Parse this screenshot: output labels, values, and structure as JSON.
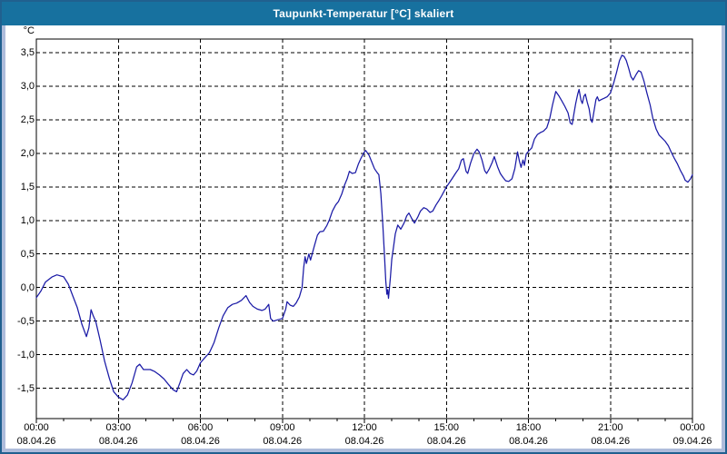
{
  "window": {
    "title": "Taupunkt-Temperatur [°C] skaliert"
  },
  "colors": {
    "titlebar_bg": "#17719f",
    "titlebar_text": "#ffffff",
    "frame": "#aebcdb",
    "frame_border": "#20608f",
    "plot_bg": "#ffffff",
    "grid": "#000000",
    "axis_text": "#000000",
    "line": "#1a1aa6"
  },
  "chart_data": {
    "type": "line",
    "title": "Taupunkt-Temperatur [°C] skaliert",
    "unit_label": "°C",
    "xlabel": "",
    "ylabel": "Taupunkt-Temperatur",
    "grid": "dashed",
    "legend": "none",
    "xlim_hours": [
      0,
      24
    ],
    "ylim": [
      -1.95,
      3.7
    ],
    "minor_x_tick_every_hours": 1,
    "major_x_tick_every_hours": 3,
    "y_ticks": [
      {
        "label": "3,5",
        "v": 3.5
      },
      {
        "label": "3,0",
        "v": 3.0
      },
      {
        "label": "2,5",
        "v": 2.5
      },
      {
        "label": "2,0",
        "v": 2.0
      },
      {
        "label": "1,5",
        "v": 1.5
      },
      {
        "label": "1,0",
        "v": 1.0
      },
      {
        "label": "0,5",
        "v": 0.5
      },
      {
        "label": "0,0",
        "v": 0.0
      },
      {
        "label": "-0,5",
        "v": -0.5
      },
      {
        "label": "-1,0",
        "v": -1.0
      },
      {
        "label": "-1,5",
        "v": -1.5
      }
    ],
    "x_ticks": [
      {
        "time": "00:00",
        "date": "08.04.26",
        "h": 0
      },
      {
        "time": "03:00",
        "date": "08.04.26",
        "h": 3
      },
      {
        "time": "06:00",
        "date": "08.04.26",
        "h": 6
      },
      {
        "time": "09:00",
        "date": "08.04.26",
        "h": 9
      },
      {
        "time": "12:00",
        "date": "08.04.26",
        "h": 12
      },
      {
        "time": "15:00",
        "date": "08.04.26",
        "h": 15
      },
      {
        "time": "18:00",
        "date": "08.04.26",
        "h": 18
      },
      {
        "time": "21:00",
        "date": "08.04.26",
        "h": 21
      },
      {
        "time": "00:00",
        "date": "09.04.26",
        "h": 24
      }
    ],
    "series": [
      {
        "name": "Taupunkt-Temperatur",
        "color": "#1a1aa6",
        "points_h_degC": [
          [
            0,
            -0.15
          ],
          [
            0.17,
            -0.05
          ],
          [
            0.33,
            0.08
          ],
          [
            0.58,
            0.16
          ],
          [
            0.75,
            0.19
          ],
          [
            1,
            0.16
          ],
          [
            1.17,
            0.05
          ],
          [
            1.33,
            -0.12
          ],
          [
            1.5,
            -0.3
          ],
          [
            1.67,
            -0.55
          ],
          [
            1.83,
            -0.73
          ],
          [
            1.92,
            -0.6
          ],
          [
            2,
            -0.33
          ],
          [
            2.08,
            -0.42
          ],
          [
            2.17,
            -0.5
          ],
          [
            2.33,
            -0.78
          ],
          [
            2.5,
            -1.1
          ],
          [
            2.67,
            -1.35
          ],
          [
            2.83,
            -1.55
          ],
          [
            3,
            -1.63
          ],
          [
            3.17,
            -1.67
          ],
          [
            3.33,
            -1.6
          ],
          [
            3.5,
            -1.42
          ],
          [
            3.67,
            -1.18
          ],
          [
            3.78,
            -1.14
          ],
          [
            3.92,
            -1.22
          ],
          [
            4.17,
            -1.22
          ],
          [
            4.33,
            -1.25
          ],
          [
            4.5,
            -1.3
          ],
          [
            4.67,
            -1.36
          ],
          [
            4.83,
            -1.44
          ],
          [
            5,
            -1.52
          ],
          [
            5.13,
            -1.55
          ],
          [
            5.25,
            -1.42
          ],
          [
            5.37,
            -1.28
          ],
          [
            5.5,
            -1.22
          ],
          [
            5.63,
            -1.28
          ],
          [
            5.75,
            -1.3
          ],
          [
            5.87,
            -1.24
          ],
          [
            6,
            -1.12
          ],
          [
            6.17,
            -1.04
          ],
          [
            6.33,
            -0.97
          ],
          [
            6.5,
            -0.82
          ],
          [
            6.67,
            -0.6
          ],
          [
            6.83,
            -0.42
          ],
          [
            7,
            -0.3
          ],
          [
            7.17,
            -0.25
          ],
          [
            7.33,
            -0.23
          ],
          [
            7.5,
            -0.19
          ],
          [
            7.67,
            -0.12
          ],
          [
            7.8,
            -0.22
          ],
          [
            7.92,
            -0.28
          ],
          [
            8.08,
            -0.32
          ],
          [
            8.25,
            -0.34
          ],
          [
            8.37,
            -0.32
          ],
          [
            8.5,
            -0.25
          ],
          [
            8.57,
            -0.46
          ],
          [
            8.67,
            -0.5
          ],
          [
            8.83,
            -0.48
          ],
          [
            9,
            -0.46
          ],
          [
            9.12,
            -0.32
          ],
          [
            9.17,
            -0.21
          ],
          [
            9.28,
            -0.26
          ],
          [
            9.4,
            -0.28
          ],
          [
            9.5,
            -0.23
          ],
          [
            9.62,
            -0.14
          ],
          [
            9.72,
            0
          ],
          [
            9.78,
            0.3
          ],
          [
            9.83,
            0.46
          ],
          [
            9.88,
            0.36
          ],
          [
            9.97,
            0.5
          ],
          [
            10.03,
            0.41
          ],
          [
            10.17,
            0.62
          ],
          [
            10.28,
            0.78
          ],
          [
            10.37,
            0.83
          ],
          [
            10.5,
            0.84
          ],
          [
            10.62,
            0.92
          ],
          [
            10.72,
            1.01
          ],
          [
            10.83,
            1.14
          ],
          [
            10.95,
            1.23
          ],
          [
            11.05,
            1.28
          ],
          [
            11.17,
            1.39
          ],
          [
            11.28,
            1.53
          ],
          [
            11.37,
            1.62
          ],
          [
            11.45,
            1.73
          ],
          [
            11.55,
            1.7
          ],
          [
            11.67,
            1.71
          ],
          [
            11.78,
            1.84
          ],
          [
            11.88,
            1.93
          ],
          [
            12,
            2.02
          ],
          [
            12.05,
            2.04
          ],
          [
            12.17,
            1.97
          ],
          [
            12.28,
            1.86
          ],
          [
            12.37,
            1.77
          ],
          [
            12.47,
            1.71
          ],
          [
            12.53,
            1.68
          ],
          [
            12.6,
            1.4
          ],
          [
            12.67,
            0.95
          ],
          [
            12.73,
            0.5
          ],
          [
            12.78,
            0.1
          ],
          [
            12.82,
            -0.1
          ],
          [
            12.85,
            -0.03
          ],
          [
            12.88,
            -0.16
          ],
          [
            12.95,
            0.15
          ],
          [
            13,
            0.42
          ],
          [
            13.07,
            0.62
          ],
          [
            13.13,
            0.8
          ],
          [
            13.22,
            0.93
          ],
          [
            13.33,
            0.87
          ],
          [
            13.45,
            0.96
          ],
          [
            13.55,
            1.07
          ],
          [
            13.63,
            1.11
          ],
          [
            13.73,
            1.03
          ],
          [
            13.83,
            0.96
          ],
          [
            13.95,
            1.05
          ],
          [
            14.05,
            1.14
          ],
          [
            14.17,
            1.19
          ],
          [
            14.28,
            1.17
          ],
          [
            14.4,
            1.12
          ],
          [
            14.5,
            1.14
          ],
          [
            14.62,
            1.23
          ],
          [
            14.73,
            1.3
          ],
          [
            14.83,
            1.37
          ],
          [
            14.95,
            1.46
          ],
          [
            15,
            1.5
          ],
          [
            15.12,
            1.57
          ],
          [
            15.22,
            1.63
          ],
          [
            15.33,
            1.7
          ],
          [
            15.45,
            1.77
          ],
          [
            15.55,
            1.9
          ],
          [
            15.62,
            1.92
          ],
          [
            15.72,
            1.73
          ],
          [
            15.78,
            1.7
          ],
          [
            15.88,
            1.85
          ],
          [
            16,
            1.99
          ],
          [
            16.12,
            2.06
          ],
          [
            16.2,
            2.02
          ],
          [
            16.3,
            1.9
          ],
          [
            16.4,
            1.74
          ],
          [
            16.47,
            1.7
          ],
          [
            16.57,
            1.77
          ],
          [
            16.67,
            1.86
          ],
          [
            16.75,
            1.95
          ],
          [
            16.87,
            1.8
          ],
          [
            16.97,
            1.7
          ],
          [
            17.07,
            1.64
          ],
          [
            17.17,
            1.59
          ],
          [
            17.28,
            1.58
          ],
          [
            17.4,
            1.62
          ],
          [
            17.5,
            1.77
          ],
          [
            17.6,
            2.02
          ],
          [
            17.67,
            1.88
          ],
          [
            17.73,
            1.79
          ],
          [
            17.8,
            1.9
          ],
          [
            17.85,
            1.82
          ],
          [
            17.92,
            1.99
          ],
          [
            18,
            2.03
          ],
          [
            18.12,
            2.08
          ],
          [
            18.22,
            2.21
          ],
          [
            18.33,
            2.28
          ],
          [
            18.45,
            2.31
          ],
          [
            18.55,
            2.33
          ],
          [
            18.67,
            2.38
          ],
          [
            18.78,
            2.52
          ],
          [
            18.88,
            2.72
          ],
          [
            19,
            2.92
          ],
          [
            19.12,
            2.85
          ],
          [
            19.22,
            2.78
          ],
          [
            19.33,
            2.7
          ],
          [
            19.45,
            2.6
          ],
          [
            19.53,
            2.45
          ],
          [
            19.6,
            2.43
          ],
          [
            19.67,
            2.6
          ],
          [
            19.73,
            2.74
          ],
          [
            19.8,
            2.88
          ],
          [
            19.85,
            2.95
          ],
          [
            19.92,
            2.79
          ],
          [
            19.97,
            2.74
          ],
          [
            20.03,
            2.85
          ],
          [
            20.08,
            2.88
          ],
          [
            20.15,
            2.76
          ],
          [
            20.22,
            2.66
          ],
          [
            20.28,
            2.5
          ],
          [
            20.33,
            2.46
          ],
          [
            20.4,
            2.63
          ],
          [
            20.47,
            2.8
          ],
          [
            20.52,
            2.84
          ],
          [
            20.58,
            2.78
          ],
          [
            20.67,
            2.8
          ],
          [
            20.78,
            2.82
          ],
          [
            20.88,
            2.84
          ],
          [
            21,
            2.9
          ],
          [
            21.12,
            3.05
          ],
          [
            21.22,
            3.2
          ],
          [
            21.33,
            3.38
          ],
          [
            21.42,
            3.46
          ],
          [
            21.5,
            3.44
          ],
          [
            21.58,
            3.38
          ],
          [
            21.67,
            3.26
          ],
          [
            21.75,
            3.14
          ],
          [
            21.83,
            3.09
          ],
          [
            21.95,
            3.18
          ],
          [
            22.03,
            3.23
          ],
          [
            22.12,
            3.21
          ],
          [
            22.22,
            3.08
          ],
          [
            22.33,
            2.9
          ],
          [
            22.45,
            2.72
          ],
          [
            22.55,
            2.52
          ],
          [
            22.67,
            2.36
          ],
          [
            22.78,
            2.27
          ],
          [
            22.88,
            2.23
          ],
          [
            23,
            2.18
          ],
          [
            23.12,
            2.11
          ],
          [
            23.22,
            2.02
          ],
          [
            23.33,
            1.93
          ],
          [
            23.45,
            1.84
          ],
          [
            23.55,
            1.75
          ],
          [
            23.67,
            1.66
          ],
          [
            23.73,
            1.6
          ],
          [
            23.83,
            1.57
          ],
          [
            23.93,
            1.62
          ],
          [
            24,
            1.68
          ]
        ]
      }
    ]
  }
}
